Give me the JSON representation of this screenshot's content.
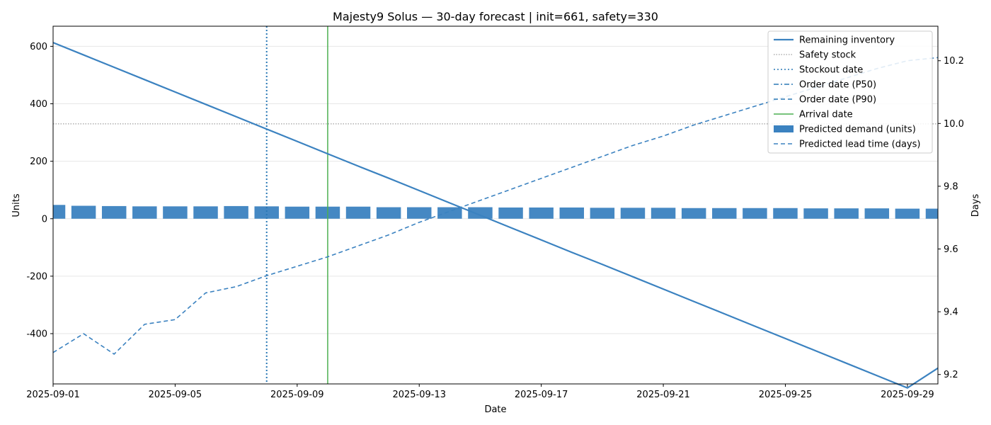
{
  "chart_data": {
    "type": "line",
    "title": "Majesty9 Solus — 30-day forecast | init=661, safety=330",
    "xlabel": "Date",
    "ylabel": "Units",
    "y2label": "Days",
    "dates": [
      "2025-09-01",
      "2025-09-02",
      "2025-09-03",
      "2025-09-04",
      "2025-09-05",
      "2025-09-06",
      "2025-09-07",
      "2025-09-08",
      "2025-09-09",
      "2025-09-10",
      "2025-09-11",
      "2025-09-12",
      "2025-09-13",
      "2025-09-14",
      "2025-09-15",
      "2025-09-16",
      "2025-09-17",
      "2025-09-18",
      "2025-09-19",
      "2025-09-20",
      "2025-09-21",
      "2025-09-22",
      "2025-09-23",
      "2025-09-24",
      "2025-09-25",
      "2025-09-26",
      "2025-09-27",
      "2025-09-28",
      "2025-09-29",
      "2025-09-30"
    ],
    "xticks": [
      "2025-09-01",
      "2025-09-05",
      "2025-09-09",
      "2025-09-13",
      "2025-09-17",
      "2025-09-21",
      "2025-09-25",
      "2025-09-29"
    ],
    "xlim": [
      "2025-09-01",
      "2025-09-30"
    ],
    "ylim": [
      -575,
      670
    ],
    "yticks": [
      -400,
      -200,
      0,
      200,
      400,
      600
    ],
    "y2lim": [
      9.17,
      10.31
    ],
    "y2ticks": [
      9.2,
      9.4,
      9.6,
      9.8,
      10.0,
      10.2
    ],
    "grid": "horizontal",
    "legend_position": "top-right",
    "series": [
      {
        "name": "Remaining inventory",
        "axis": "left",
        "style": "solid",
        "color": "#3b82c0",
        "values": [
          613,
          570,
          527,
          484,
          441,
          398,
          355,
          312,
          269,
          226,
          183,
          141,
          98,
          55,
          12,
          -31,
          -74,
          -117,
          -159,
          -202,
          -245,
          -288,
          -331,
          -374,
          -417,
          -460,
          -503,
          -546,
          -589,
          -520
        ]
      },
      {
        "name": "Predicted demand (units)",
        "axis": "left",
        "style": "bar",
        "color": "#3b82c0",
        "values": [
          48,
          45,
          44,
          43,
          43,
          43,
          44,
          43,
          42,
          42,
          42,
          40,
          40,
          40,
          40,
          39,
          39,
          39,
          38,
          38,
          38,
          37,
          37,
          37,
          37,
          36,
          36,
          36,
          35,
          35
        ]
      },
      {
        "name": "Predicted lead time (days)",
        "axis": "right",
        "style": "dashed",
        "color": "#3b82c0",
        "values": [
          9.27,
          9.33,
          9.265,
          9.36,
          9.375,
          9.46,
          9.48,
          9.515,
          9.545,
          9.575,
          9.61,
          9.645,
          9.685,
          9.72,
          9.755,
          9.79,
          9.825,
          9.86,
          9.895,
          9.93,
          9.96,
          9.995,
          10.025,
          10.055,
          10.085,
          10.115,
          10.145,
          10.175,
          10.2,
          10.21
        ]
      }
    ],
    "reference_lines": [
      {
        "name": "Safety stock",
        "kind": "horizontal",
        "value": 330,
        "style": "dotted",
        "color": "#888888"
      },
      {
        "name": "Stockout date",
        "kind": "vertical",
        "date": "2025-09-08",
        "style": "dotted",
        "color": "#2a78b5"
      },
      {
        "name": "Order date (P50)",
        "kind": "vertical",
        "date": null,
        "style": "dashdot",
        "color": "#2a78b5"
      },
      {
        "name": "Order date (P90)",
        "kind": "vertical",
        "date": null,
        "style": "dashed",
        "color": "#2a78b5"
      },
      {
        "name": "Arrival date",
        "kind": "vertical",
        "date": "2025-09-10",
        "style": "solid",
        "color": "#4caf50"
      }
    ],
    "legend": [
      "Remaining inventory",
      "Safety stock",
      "Stockout date",
      "Order date (P50)",
      "Order date (P90)",
      "Arrival date",
      "Predicted demand (units)",
      "Predicted lead time (days)"
    ]
  }
}
